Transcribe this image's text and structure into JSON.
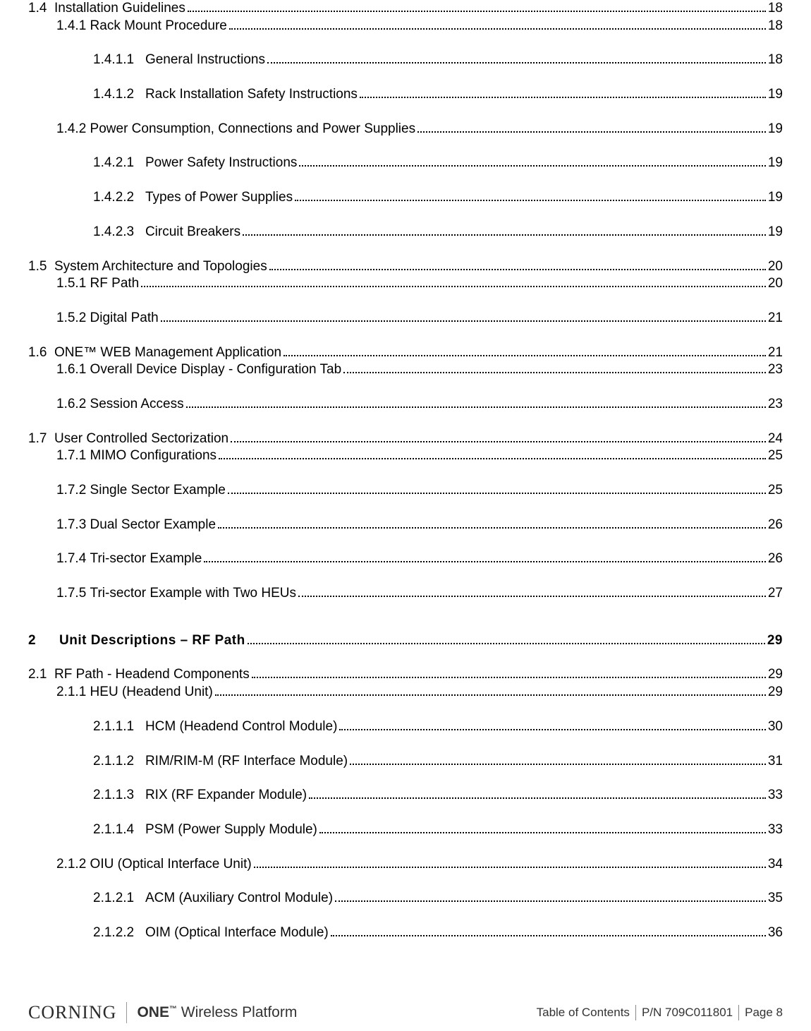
{
  "entries": [
    {
      "indent": 0,
      "num": "1.4  ",
      "title": "Installation Guidelines",
      "page": "18",
      "spacing": "tight"
    },
    {
      "indent": 1,
      "num": "1.4.1 ",
      "title": "Rack Mount Procedure",
      "page": "18",
      "spacing": "spaced"
    },
    {
      "indent": 2,
      "num": "1.4.1.1",
      "title": "General Instructions",
      "page": "18",
      "spacing": "spaced"
    },
    {
      "indent": 2,
      "num": "1.4.1.2",
      "title": "Rack Installation Safety Instructions",
      "page": "19",
      "spacing": "spaced"
    },
    {
      "indent": 1,
      "num": "1.4.2 ",
      "title": "Power Consumption, Connections and Power Supplies",
      "page": "19",
      "spacing": "spaced"
    },
    {
      "indent": 2,
      "num": "1.4.2.1",
      "title": "Power Safety Instructions",
      "page": "19",
      "spacing": "spaced"
    },
    {
      "indent": 2,
      "num": "1.4.2.2",
      "title": "Types of Power Supplies",
      "page": "19",
      "spacing": "spaced"
    },
    {
      "indent": 2,
      "num": "1.4.2.3",
      "title": "Circuit Breakers",
      "page": "19",
      "spacing": "spaced"
    },
    {
      "indent": 0,
      "num": "1.5  ",
      "title": "System Architecture and Topologies",
      "page": "20",
      "spacing": "tight"
    },
    {
      "indent": 1,
      "num": "1.5.1 ",
      "title": "RF Path",
      "page": "20",
      "spacing": "spaced"
    },
    {
      "indent": 1,
      "num": "1.5.2 ",
      "title": "Digital Path",
      "page": "21",
      "spacing": "spaced"
    },
    {
      "indent": 0,
      "num": "1.6  ",
      "title": "ONE™ WEB Management Application",
      "page": "21",
      "spacing": "tight"
    },
    {
      "indent": 1,
      "num": "1.6.1 ",
      "title": "Overall Device Display - Configuration Tab",
      "page": "23",
      "spacing": "spaced"
    },
    {
      "indent": 1,
      "num": "1.6.2 ",
      "title": "Session Access",
      "page": "23",
      "spacing": "spaced"
    },
    {
      "indent": 0,
      "num": "1.7  ",
      "title": "User Controlled Sectorization",
      "page": "24",
      "spacing": "tight"
    },
    {
      "indent": 1,
      "num": "1.7.1 ",
      "title": "MIMO Configurations",
      "page": "25",
      "spacing": "spaced"
    },
    {
      "indent": 1,
      "num": "1.7.2 ",
      "title": "Single Sector Example",
      "page": "25",
      "spacing": "spaced"
    },
    {
      "indent": 1,
      "num": "1.7.3 ",
      "title": "Dual Sector Example",
      "page": "26",
      "spacing": "spaced"
    },
    {
      "indent": 1,
      "num": "1.7.4 ",
      "title": "Tri-sector Example",
      "page": "26",
      "spacing": "spaced"
    },
    {
      "indent": 1,
      "num": "1.7.5 ",
      "title": "Tri-sector Example with Two HEUs",
      "page": "27",
      "spacing": "spaced",
      "extraGap": true
    },
    {
      "indent": 0,
      "num": "2",
      "title": "Unit Descriptions – RF Path",
      "page": "29",
      "spacing": "spaced",
      "chapter": true
    },
    {
      "indent": 0,
      "num": "2.1  ",
      "title": "RF Path - Headend Components",
      "page": "29",
      "spacing": "tight"
    },
    {
      "indent": 1,
      "num": "2.1.1 ",
      "title": "HEU (Headend Unit)",
      "page": "29",
      "spacing": "spaced"
    },
    {
      "indent": 2,
      "num": "2.1.1.1",
      "title": "HCM (Headend Control Module)",
      "page": "30",
      "spacing": "spaced"
    },
    {
      "indent": 2,
      "num": "2.1.1.2",
      "title": "RIM/RIM-M (RF Interface Module)",
      "page": "31",
      "spacing": "spaced"
    },
    {
      "indent": 2,
      "num": "2.1.1.3",
      "title": "RIX (RF Expander Module)",
      "page": "33",
      "spacing": "spaced"
    },
    {
      "indent": 2,
      "num": "2.1.1.4",
      "title": "PSM (Power Supply Module)",
      "page": "33",
      "spacing": "spaced"
    },
    {
      "indent": 1,
      "num": "2.1.2 ",
      "title": "OIU (Optical Interface Unit)",
      "page": "34",
      "spacing": "spaced"
    },
    {
      "indent": 2,
      "num": "2.1.2.1",
      "title": "ACM (Auxiliary Control Module)",
      "page": "35",
      "spacing": "spaced"
    },
    {
      "indent": 2,
      "num": "2.1.2.2",
      "title": "OIM (Optical Interface Module)",
      "page": "36",
      "spacing": "spaced"
    }
  ],
  "footer": {
    "brand1": "CORNING",
    "brand2_prefix": "ONE",
    "brand2_tm": "™",
    "brand2_suffix": " Wireless Platform",
    "section": "Table of Contents",
    "pn": "P/N 709C011801",
    "page": "Page 8"
  }
}
